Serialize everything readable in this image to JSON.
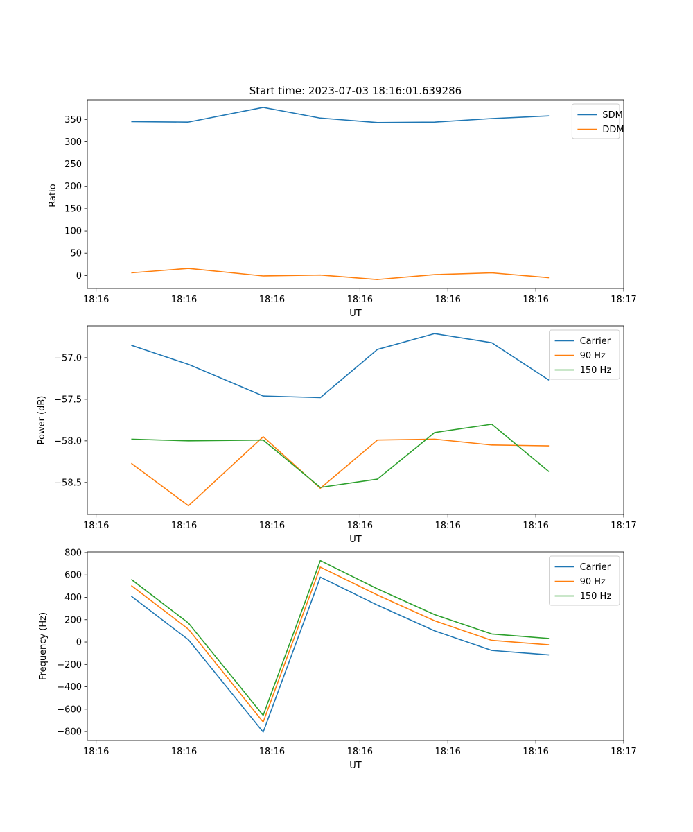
{
  "chart_data": [
    {
      "type": "line",
      "title": "Start time: 2023-07-03 18:16:01.639286",
      "xlabel": "UT",
      "ylabel": "Ratio",
      "x": [
        0.5,
        1.15,
        2.0,
        2.65,
        3.3,
        3.95,
        4.6,
        5.25
      ],
      "xlim": [
        0,
        6.1
      ],
      "x_ticks": [
        0.1,
        1.1,
        2.1,
        3.1,
        4.1,
        5.1,
        6.1
      ],
      "x_tick_labels": [
        "18:16",
        "18:16",
        "18:16",
        "18:16",
        "18:16",
        "18:16",
        "18:17"
      ],
      "ylim": [
        -29,
        394
      ],
      "y_ticks": [
        0,
        50,
        100,
        150,
        200,
        250,
        300,
        350
      ],
      "y_tick_labels": [
        "0",
        "50",
        "100",
        "150",
        "200",
        "250",
        "300",
        "350"
      ],
      "legend": "upper right",
      "series": [
        {
          "name": "SDM",
          "color": "#1f77b4",
          "values": [
            345,
            344,
            377,
            353,
            343,
            344,
            352,
            358
          ]
        },
        {
          "name": "DDM",
          "color": "#ff7f0e",
          "values": [
            6,
            16,
            -1,
            1,
            -9,
            2,
            6,
            -5
          ]
        }
      ]
    },
    {
      "type": "line",
      "title": "",
      "xlabel": "UT",
      "ylabel": "Power (dB)",
      "x": [
        0.5,
        1.15,
        2.0,
        2.65,
        3.3,
        3.95,
        4.6,
        5.25
      ],
      "xlim": [
        0,
        6.1
      ],
      "x_ticks": [
        0.1,
        1.1,
        2.1,
        3.1,
        4.1,
        5.1,
        6.1
      ],
      "x_tick_labels": [
        "18:16",
        "18:16",
        "18:16",
        "18:16",
        "18:16",
        "18:16",
        "18:17"
      ],
      "ylim": [
        -58.885,
        -56.617
      ],
      "y_ticks": [
        -58.5,
        -58.0,
        -57.5,
        -57.0
      ],
      "y_tick_labels": [
        "−58.5",
        "−58.0",
        "−57.5",
        "−57.0"
      ],
      "legend": "upper right",
      "series": [
        {
          "name": "Carrier",
          "color": "#1f77b4",
          "values": [
            -56.85,
            -57.08,
            -57.46,
            -57.48,
            -56.9,
            -56.71,
            -56.82,
            -57.27
          ]
        },
        {
          "name": "90 Hz",
          "color": "#ff7f0e",
          "values": [
            -58.27,
            -58.78,
            -57.95,
            -58.57,
            -57.99,
            -57.98,
            -58.05,
            -58.06
          ]
        },
        {
          "name": "150 Hz",
          "color": "#2ca02c",
          "values": [
            -57.98,
            -58.0,
            -57.99,
            -58.56,
            -58.46,
            -57.9,
            -57.8,
            -58.37
          ]
        }
      ]
    },
    {
      "type": "line",
      "title": "",
      "xlabel": "UT",
      "ylabel": "Frequency (Hz)",
      "x": [
        0.5,
        1.15,
        2.0,
        2.65,
        3.3,
        3.95,
        4.6,
        5.25
      ],
      "xlim": [
        0,
        6.1
      ],
      "x_ticks": [
        0.1,
        1.1,
        2.1,
        3.1,
        4.1,
        5.1,
        6.1
      ],
      "x_tick_labels": [
        "18:16",
        "18:16",
        "18:16",
        "18:16",
        "18:16",
        "18:16",
        "18:17"
      ],
      "ylim": [
        -880,
        806
      ],
      "y_ticks": [
        -800,
        -600,
        -400,
        -200,
        0,
        200,
        400,
        600,
        800
      ],
      "y_tick_labels": [
        "−800",
        "−600",
        "−400",
        "−200",
        "0",
        "200",
        "400",
        "600",
        "800"
      ],
      "legend": "upper right",
      "series": [
        {
          "name": "Carrier",
          "color": "#1f77b4",
          "values": [
            410,
            20,
            -805,
            580,
            330,
            100,
            -75,
            -115
          ]
        },
        {
          "name": "90 Hz",
          "color": "#ff7f0e",
          "values": [
            505,
            115,
            -715,
            670,
            420,
            190,
            15,
            -25
          ]
        },
        {
          "name": "150 Hz",
          "color": "#2ca02c",
          "values": [
            560,
            170,
            -655,
            728,
            475,
            245,
            72,
            32
          ]
        }
      ]
    }
  ]
}
